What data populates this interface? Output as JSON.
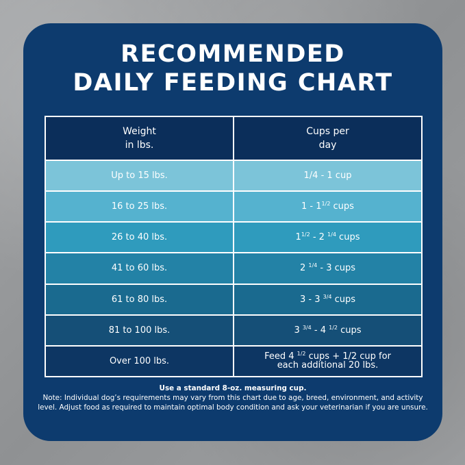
{
  "title": {
    "line1": "RECOMMENDED",
    "line2": "DAILY FEEDING CHART"
  },
  "table": {
    "headers": {
      "weight_line1": "Weight",
      "weight_line2": "in lbs.",
      "cups_line1": "Cups per",
      "cups_line2": "day"
    },
    "rows": [
      {
        "weight": "Up to 15 lbs.",
        "bg": "#7cc4d9",
        "cups": {
          "a": "1/4 - 1 cup"
        }
      },
      {
        "weight": "16 to 25 lbs.",
        "bg": "#55b2cf",
        "cups": {
          "a": "1 - 1",
          "sup1": "1/2",
          "b": " cups"
        }
      },
      {
        "weight": "26 to 40 lbs.",
        "bg": "#2f9bbd",
        "cups": {
          "a": "1",
          "sup1": "1/2",
          "b": " - 2 ",
          "sup2": "1/4",
          "c": " cups"
        }
      },
      {
        "weight": "41 to 60 lbs.",
        "bg": "#2382a6",
        "cups": {
          "a": "2 ",
          "sup1": "1/4",
          "b": " - 3 cups"
        }
      },
      {
        "weight": "61 to 80 lbs.",
        "bg": "#1a6a8f",
        "cups": {
          "a": "3 - 3 ",
          "sup1": "3/4",
          "b": " cups"
        }
      },
      {
        "weight": "81 to 100 lbs.",
        "bg": "#154f77",
        "cups": {
          "a": "3 ",
          "sup1": "3/4",
          "b": " - 4 ",
          "sup2": "1/2",
          "c": " cups"
        }
      },
      {
        "weight": "Over 100 lbs.",
        "bg": "#0d3663",
        "cups": {
          "a": "Feed 4 ",
          "sup1": "1/2",
          "b": " cups + 1/2 cup for",
          "line2": "each additional 20 lbs."
        }
      }
    ]
  },
  "footer": {
    "bold_line": "Use a standard 8-oz. measuring cup.",
    "note": "Note: Individual dog’s requirements may vary from this chart due to age, breed, environment, and activity level. Adjust food as required to maintain optimal body condition and ask your veterinarian if you are unsure."
  },
  "colors": {
    "card": "#0d3b6e",
    "header": "#0b2e5a"
  }
}
